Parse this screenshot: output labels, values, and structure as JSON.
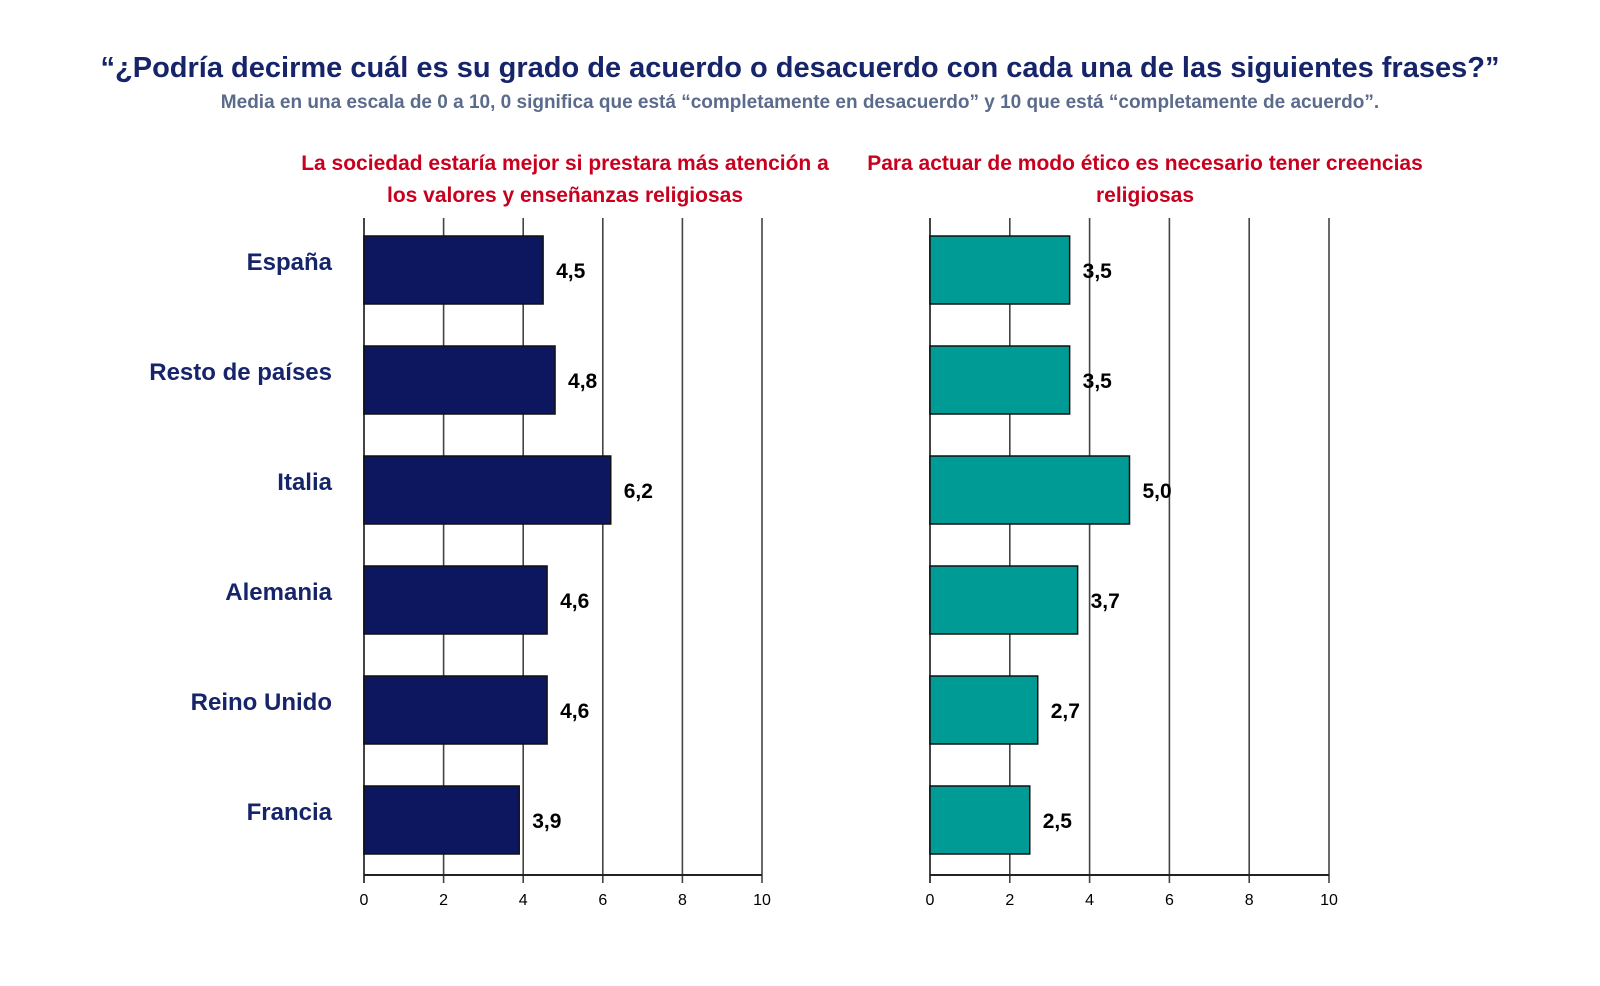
{
  "header": {
    "title": "“¿Podría decirme cuál es su grado de acuerdo o desacuerdo con cada una de las siguientes frases?”",
    "subtitle": "Media en una escala de 0 a 10, 0 significa que está “completamente en desacuerdo” y 10 que está “completamente de acuerdo”."
  },
  "chart_data": [
    {
      "type": "bar",
      "orientation": "horizontal",
      "title": "La sociedad estaría mejor si prestara más atención a los valores y enseñanzas religiosas",
      "categories": [
        "España",
        "Resto de países",
        "Italia",
        "Alemania",
        "Reino Unido",
        "Francia"
      ],
      "values": [
        4.5,
        4.8,
        6.2,
        4.6,
        4.6,
        3.9
      ],
      "value_labels": [
        "4,5",
        "4,8",
        "6,2",
        "4,6",
        "4,6",
        "3,9"
      ],
      "xlim": [
        0,
        10
      ],
      "xticks": [
        "0",
        "2",
        "4",
        "6",
        "8",
        "10"
      ],
      "grid": true,
      "color": "#0d1760"
    },
    {
      "type": "bar",
      "orientation": "horizontal",
      "title": "Para actuar de modo ético es necesario tener creencias religiosas",
      "categories": [
        "España",
        "Resto de países",
        "Italia",
        "Alemania",
        "Reino Unido",
        "Francia"
      ],
      "values": [
        3.5,
        3.5,
        5.0,
        3.7,
        2.7,
        2.5
      ],
      "value_labels": [
        "3,5",
        "3,5",
        "5,0",
        "3,7",
        "2,7",
        "2,5"
      ],
      "xlim": [
        0,
        10
      ],
      "xticks": [
        "0",
        "2",
        "4",
        "6",
        "8",
        "10"
      ],
      "grid": true,
      "color": "#009b94"
    }
  ]
}
